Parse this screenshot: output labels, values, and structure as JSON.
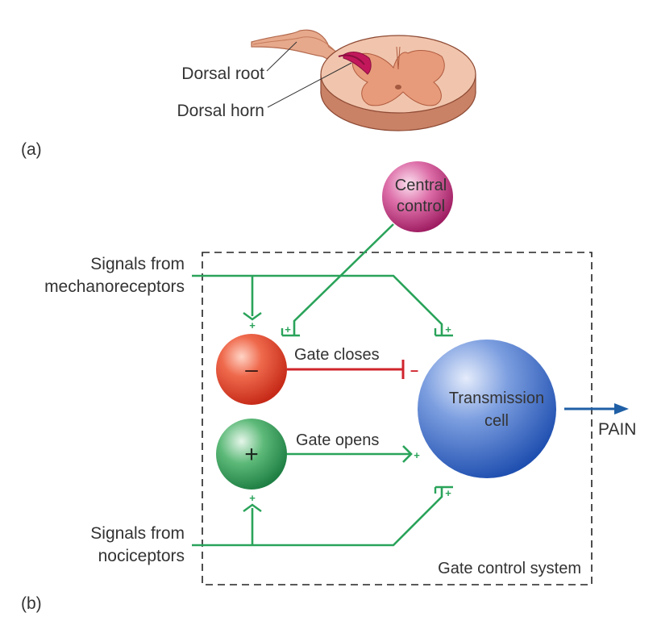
{
  "panel_a": {
    "label": "(a)",
    "dorsal_root_label": "Dorsal root",
    "dorsal_horn_label": "Dorsal horn"
  },
  "panel_b": {
    "label": "(b)",
    "central_control": {
      "line1": "Central",
      "line2": "control"
    },
    "mechanoreceptors": {
      "line1": "Signals from",
      "line2": "mechanoreceptors"
    },
    "nociceptors": {
      "line1": "Signals from",
      "line2": "nociceptors"
    },
    "inhibitory_neuron_sign": "–",
    "excitatory_neuron_sign": "+",
    "gate_closes": "Gate closes",
    "gate_opens": "Gate opens",
    "transmission": {
      "line1": "Transmission",
      "line2": "cell"
    },
    "pain": "PAIN",
    "system_label": "Gate control system",
    "synapse_plus": "+",
    "synapse_minus": "–"
  },
  "colors": {
    "pathway_green": "#2aa35a",
    "inhibit_red": "#d0242d",
    "output_blue": "#1f5fa6",
    "central_magenta": "#b8206e",
    "tissue_pink": "#eab49a"
  }
}
